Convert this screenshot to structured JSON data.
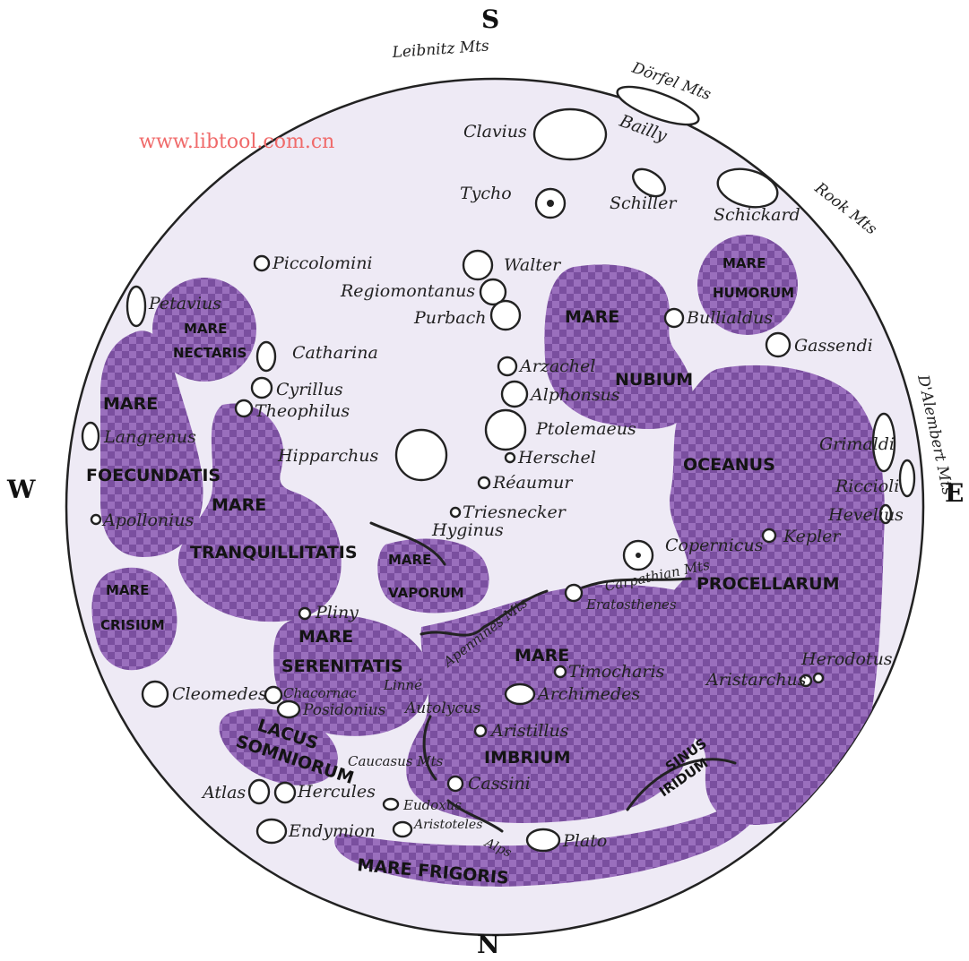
{
  "directions": {
    "south": "S",
    "north": "N",
    "west": "W",
    "east": "E"
  },
  "watermark": "www.libtool.com.cn",
  "colors": {
    "mare_fill": "#8c5fb0",
    "mare_light": "#b49ac8",
    "background": "#eeeaf5",
    "outline": "#222222",
    "watermark": "#f06a6a"
  },
  "maria": {
    "nectaris": [
      "MARE",
      "NECTARIS"
    ],
    "foecundatis": [
      "MARE",
      "FOECUNDATIS"
    ],
    "tranquillitatis": [
      "MARE",
      "TRANQUILLITATIS"
    ],
    "crisium": [
      "MARE",
      "CRISIUM"
    ],
    "vaporum": [
      "MARE",
      "VAPORUM"
    ],
    "serenitatis": [
      "MARE",
      "SERENITATIS"
    ],
    "somniorum": [
      "LACUS",
      "SOMNIORUM"
    ],
    "nubium": [
      "MARE",
      "NUBIUM"
    ],
    "humorum": [
      "MARE",
      "HUMORUM"
    ],
    "oceanus": [
      "OCEANUS",
      "PROCELLARUM"
    ],
    "imbrium": [
      "MARE",
      "IMBRIUM"
    ],
    "iridum": [
      "SINUS",
      "IRIDUM"
    ],
    "frigoris": "MARE FRIGORIS"
  },
  "edge_labels": {
    "leibnitz": "Leibnitz Mts",
    "dorfel": "Dörfel Mts",
    "rook": "Rook Mts",
    "dalembert": "D'Alembert Mts"
  },
  "craters": {
    "clavius": "Clavius",
    "bailly": "Bailly",
    "tycho": "Tycho",
    "schiller": "Schiller",
    "schickard": "Schickard",
    "piccolomini": "Piccolomini",
    "walter": "Walter",
    "regiomontanus": "Regiomontanus",
    "purbach": "Purbach",
    "bullialdus": "Bullialdus",
    "gassendi": "Gassendi",
    "petavius": "Petavius",
    "catharina": "Catharina",
    "cyrillus": "Cyrillus",
    "theophilus": "Theophilus",
    "arzachel": "Arzachel",
    "alphonsus": "Alphonsus",
    "ptolemaeus": "Ptolemaeus",
    "herschel": "Herschel",
    "langrenus": "Langrenus",
    "hipparchus": "Hipparchus",
    "reaumur": "Réaumur",
    "grimaldi": "Grimaldi",
    "riccioli": "Riccioli",
    "hevelius": "Hevelius",
    "apollonius": "Apollonius",
    "triesnecker": "Triesnecker",
    "hyginus": "Hyginus",
    "copernicus": "Copernicus",
    "kepler": "Kepler",
    "carpathian": "Carpathian Mts",
    "eratosthenes": "Eratosthenes",
    "pliny": "Pliny",
    "apennines": "Apennines Mts",
    "herodotus": "Herodotus",
    "aristarchus": "Aristarchus",
    "timocharis": "Timocharis",
    "cleomedes": "Cleomedes",
    "chacornac": "Chacornac",
    "linne": "Linné",
    "archimedes": "Archimedes",
    "posidonius": "Posidonius",
    "autolycus": "Autolycus",
    "aristillus": "Aristillus",
    "caucasus": "Caucasus Mts",
    "cassini": "Cassini",
    "atlas": "Atlas",
    "hercules": "Hercules",
    "eudoxus": "Eudoxus",
    "aristoteles": "Aristoteles",
    "alps": "Alps",
    "endymion": "Endymion",
    "plato": "Plato"
  }
}
